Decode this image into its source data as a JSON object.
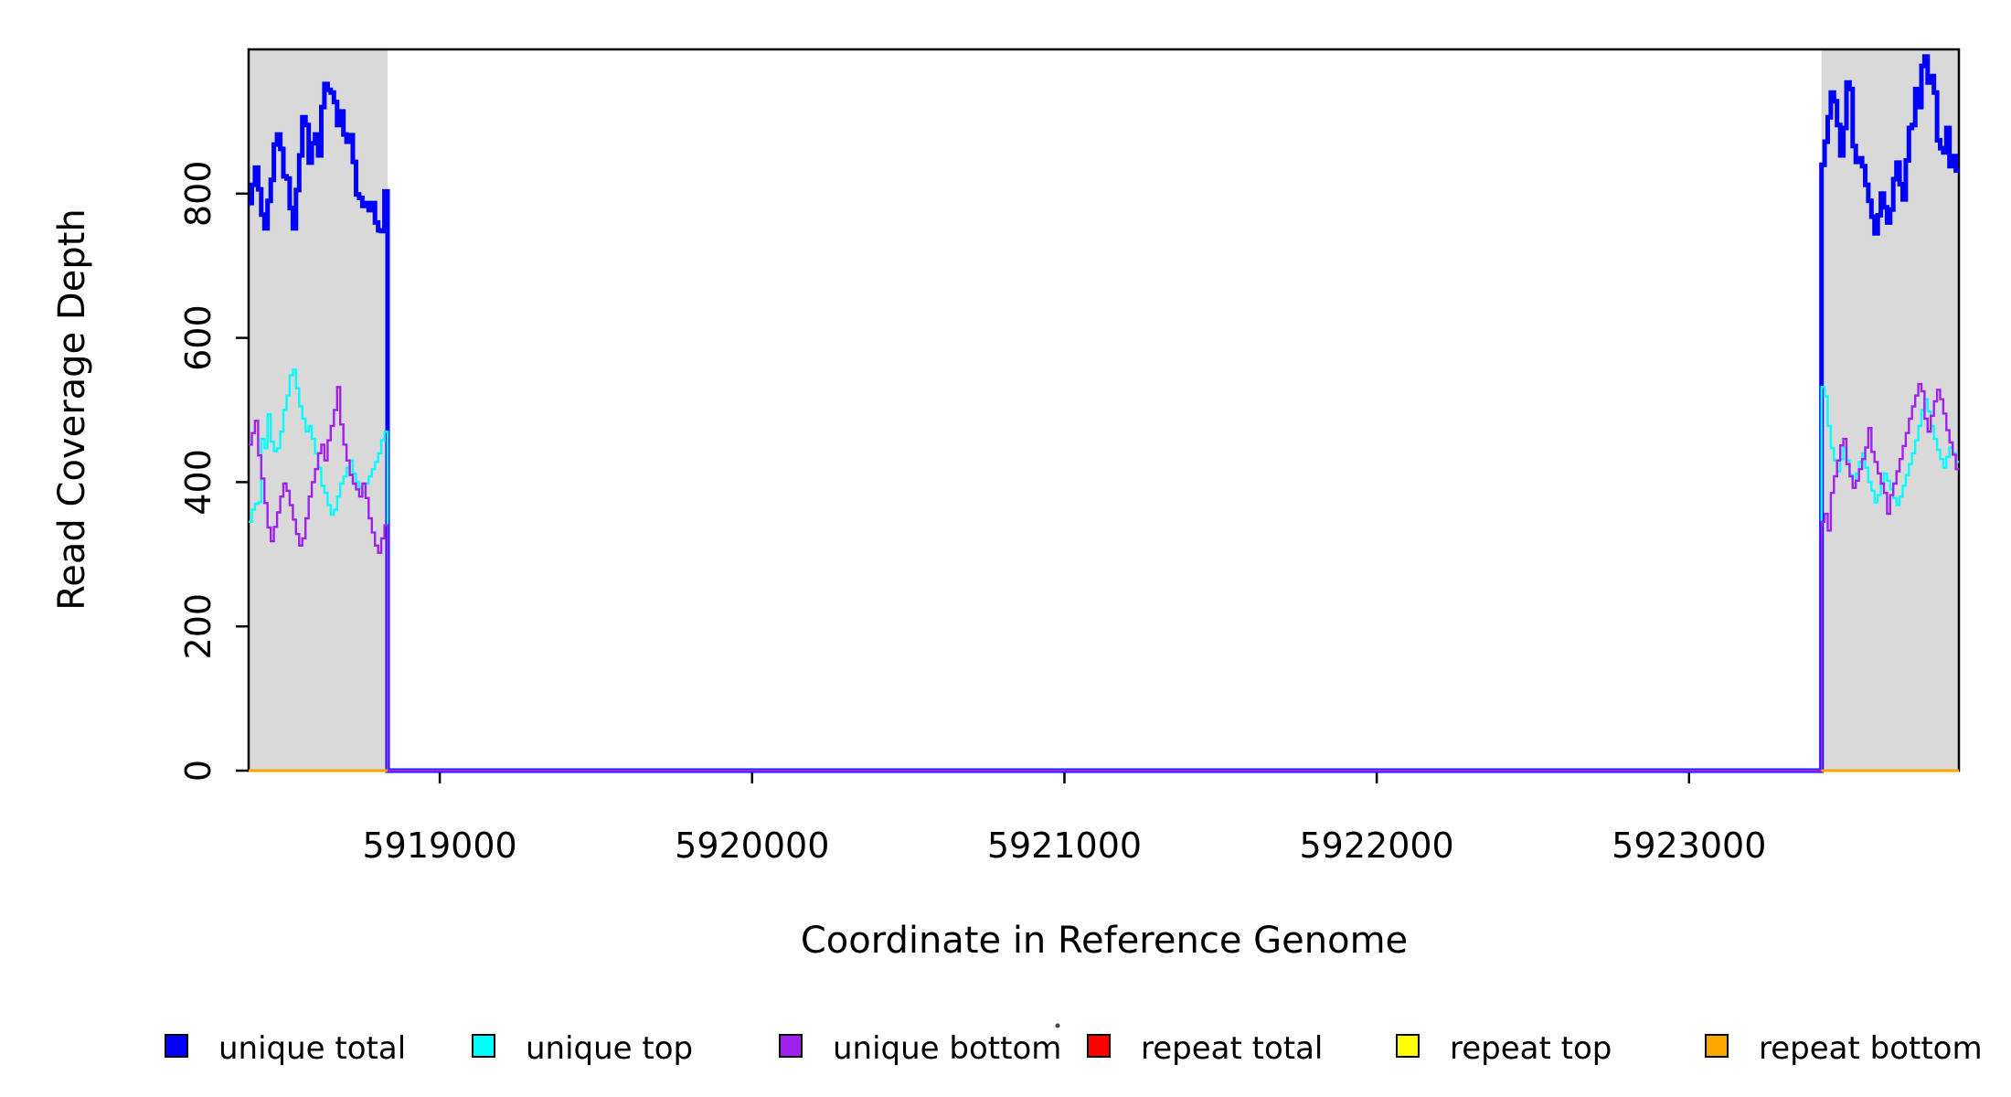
{
  "figure": {
    "background": "#ffffff",
    "title": ""
  },
  "chart_data": {
    "type": "line",
    "subtype": "step-coverage-plot",
    "title": "",
    "xlabel": "Coordinate in Reference Genome",
    "ylabel": "Read Coverage Depth",
    "xlim": [
      5918388,
      5923864
    ],
    "ylim": [
      0,
      1000
    ],
    "xticks": [
      5919000,
      5920000,
      5921000,
      5922000,
      5923000
    ],
    "yticks": [
      0,
      200,
      400,
      600,
      800
    ],
    "grid": false,
    "box_color": "#000000",
    "shade_color": "#D9D9D9",
    "shaded_regions": [
      {
        "x0": 5918388,
        "x1": 5918833
      },
      {
        "x0": 5923424,
        "x1": 5923864
      }
    ],
    "legend_position": "bottom",
    "series": [
      {
        "name": "unique total",
        "color": "#0000FF",
        "lwd": 5,
        "continuous": true,
        "segments": [
          {
            "x0": 5918388,
            "x1": 5918833,
            "values": [
              787,
              812,
              836,
              806,
              771,
              752,
              790,
              819,
              868,
              882,
              862,
              824,
              821,
              780,
              752,
              805,
              853,
              906,
              895,
              843,
              870,
              882,
              853,
              920,
              952,
              944,
              940,
              927,
              895,
              914,
              882,
              872,
              881,
              844,
              799,
              794,
              783,
              787,
              777,
              787,
              760,
              749,
              748,
              803
            ]
          },
          {
            "x0": 5918833,
            "x1": 5923424,
            "const": 0
          },
          {
            "x0": 5923424,
            "x1": 5923864,
            "values": [
              840,
              872,
              906,
              940,
              928,
              895,
              853,
              891,
              954,
              945,
              866,
              844,
              849,
              838,
              812,
              790,
              768,
              745,
              770,
              800,
              781,
              760,
              778,
              820,
              843,
              813,
              792,
              846,
              891,
              895,
              945,
              920,
              977,
              990,
              954,
              963,
              940,
              874,
              863,
              857,
              891,
              838,
              852,
              832
            ]
          }
        ]
      },
      {
        "name": "unique top",
        "color": "#00FFFF",
        "lwd": 2.4,
        "continuous": true,
        "segments": [
          {
            "x0": 5918388,
            "x1": 5918833,
            "values": [
              345,
              362,
              370,
              372,
              460,
              447,
              494,
              456,
              443,
              447,
              470,
              500,
              520,
              548,
              556,
              530,
              505,
              488,
              470,
              478,
              460,
              440,
              420,
              395,
              385,
              368,
              355,
              362,
              380,
              398,
              408,
              420,
              430,
              412,
              400,
              392,
              385,
              398,
              408,
              418,
              428,
              440,
              458,
              470
            ]
          },
          {
            "x0": 5918833,
            "x1": 5923424,
            "const": 0
          },
          {
            "x0": 5923424,
            "x1": 5923864,
            "values": [
              532,
              519,
              478,
              447,
              430,
              415,
              432,
              448,
              430,
              410,
              398,
              412,
              428,
              440,
              420,
              400,
              388,
              372,
              382,
              398,
              412,
              402,
              390,
              378,
              368,
              380,
              395,
              410,
              425,
              440,
              458,
              478,
              500,
              515,
              498,
              478,
              460,
              445,
              432,
              420,
              435,
              448,
              440,
              428
            ]
          }
        ]
      },
      {
        "name": "unique bottom",
        "color": "#A020F0",
        "lwd": 2.4,
        "continuous": true,
        "segments": [
          {
            "x0": 5918388,
            "x1": 5918833,
            "values": [
              452,
              468,
              485,
              437,
              405,
              371,
              337,
              318,
              338,
              358,
              380,
              398,
              388,
              368,
              348,
              328,
              312,
              322,
              350,
              380,
              400,
              418,
              440,
              452,
              430,
              458,
              478,
              500,
              532,
              480,
              452,
              430,
              410,
              398,
              390,
              380,
              398,
              378,
              350,
              330,
              312,
              302,
              322,
              340
            ]
          },
          {
            "x0": 5918833,
            "x1": 5923424,
            "const": 0
          },
          {
            "x0": 5923424,
            "x1": 5923864,
            "values": [
              345,
              356,
              333,
              385,
              408,
              430,
              451,
              460,
              425,
              408,
              392,
              402,
              418,
              432,
              448,
              475,
              442,
              428,
              412,
              398,
              385,
              356,
              382,
              398,
              415,
              432,
              450,
              468,
              488,
              505,
              520,
              536,
              526,
              488,
              470,
              492,
              512,
              528,
              515,
              495,
              472,
              455,
              438,
              418
            ]
          }
        ]
      },
      {
        "name": "repeat total",
        "color": "#FF0000",
        "lwd": 3,
        "continuous": false,
        "segments": [
          {
            "x0": 5918388,
            "x1": 5918833,
            "const": 0
          },
          {
            "x0": 5923424,
            "x1": 5923864,
            "const": 0
          }
        ]
      },
      {
        "name": "repeat top",
        "color": "#FFFF00",
        "lwd": 3,
        "continuous": false,
        "segments": [
          {
            "x0": 5918388,
            "x1": 5918833,
            "const": 0
          },
          {
            "x0": 5923424,
            "x1": 5923864,
            "const": 0
          }
        ]
      },
      {
        "name": "repeat bottom",
        "color": "#FFA500",
        "lwd": 3,
        "continuous": false,
        "segments": [
          {
            "x0": 5918388,
            "x1": 5918833,
            "const": 0
          },
          {
            "x0": 5923424,
            "x1": 5923864,
            "const": 0
          }
        ]
      }
    ]
  }
}
